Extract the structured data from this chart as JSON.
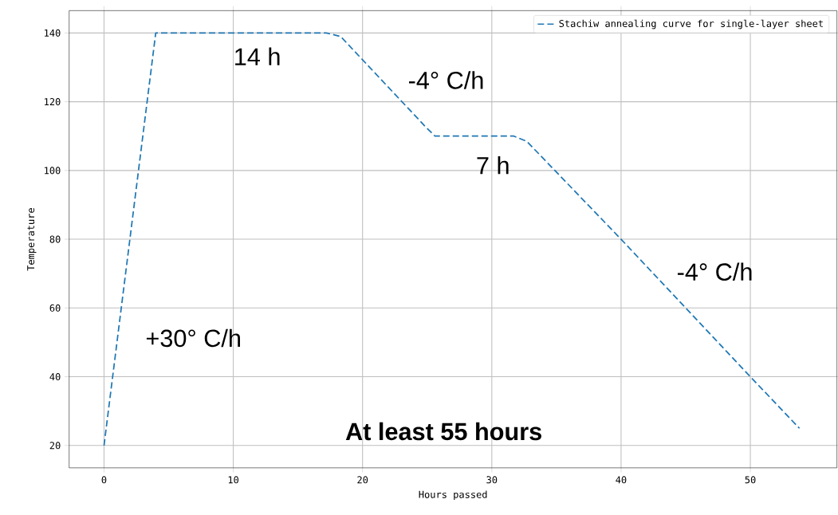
{
  "chart_data": {
    "type": "line",
    "xlabel": "Hours passed",
    "ylabel": "Temperature",
    "x": [
      0,
      4,
      17.2,
      18.3,
      24.8,
      25.6,
      31.7,
      32.7,
      40,
      50,
      53.8
    ],
    "series": [
      {
        "name": "Stachiw annealing curve for single-layer sheet",
        "color": "#1f77b4",
        "values": [
          20,
          140,
          140,
          139,
          113,
          110,
          110,
          108.5,
          80,
          40,
          25
        ]
      }
    ],
    "xlim": [
      -2.7,
      56.7
    ],
    "ylim": [
      13.5,
      146.5
    ],
    "xticks": [
      0,
      10,
      20,
      30,
      40,
      50
    ],
    "yticks": [
      20,
      40,
      60,
      80,
      100,
      120,
      140
    ],
    "grid": true,
    "legend": "top right",
    "line_style": "dashed",
    "marker": "none",
    "annotations": [
      "14 h",
      "-4° C/h",
      "7 h",
      "-4° C/h",
      "+30° C/h",
      "**At least 55 hours**"
    ]
  }
}
